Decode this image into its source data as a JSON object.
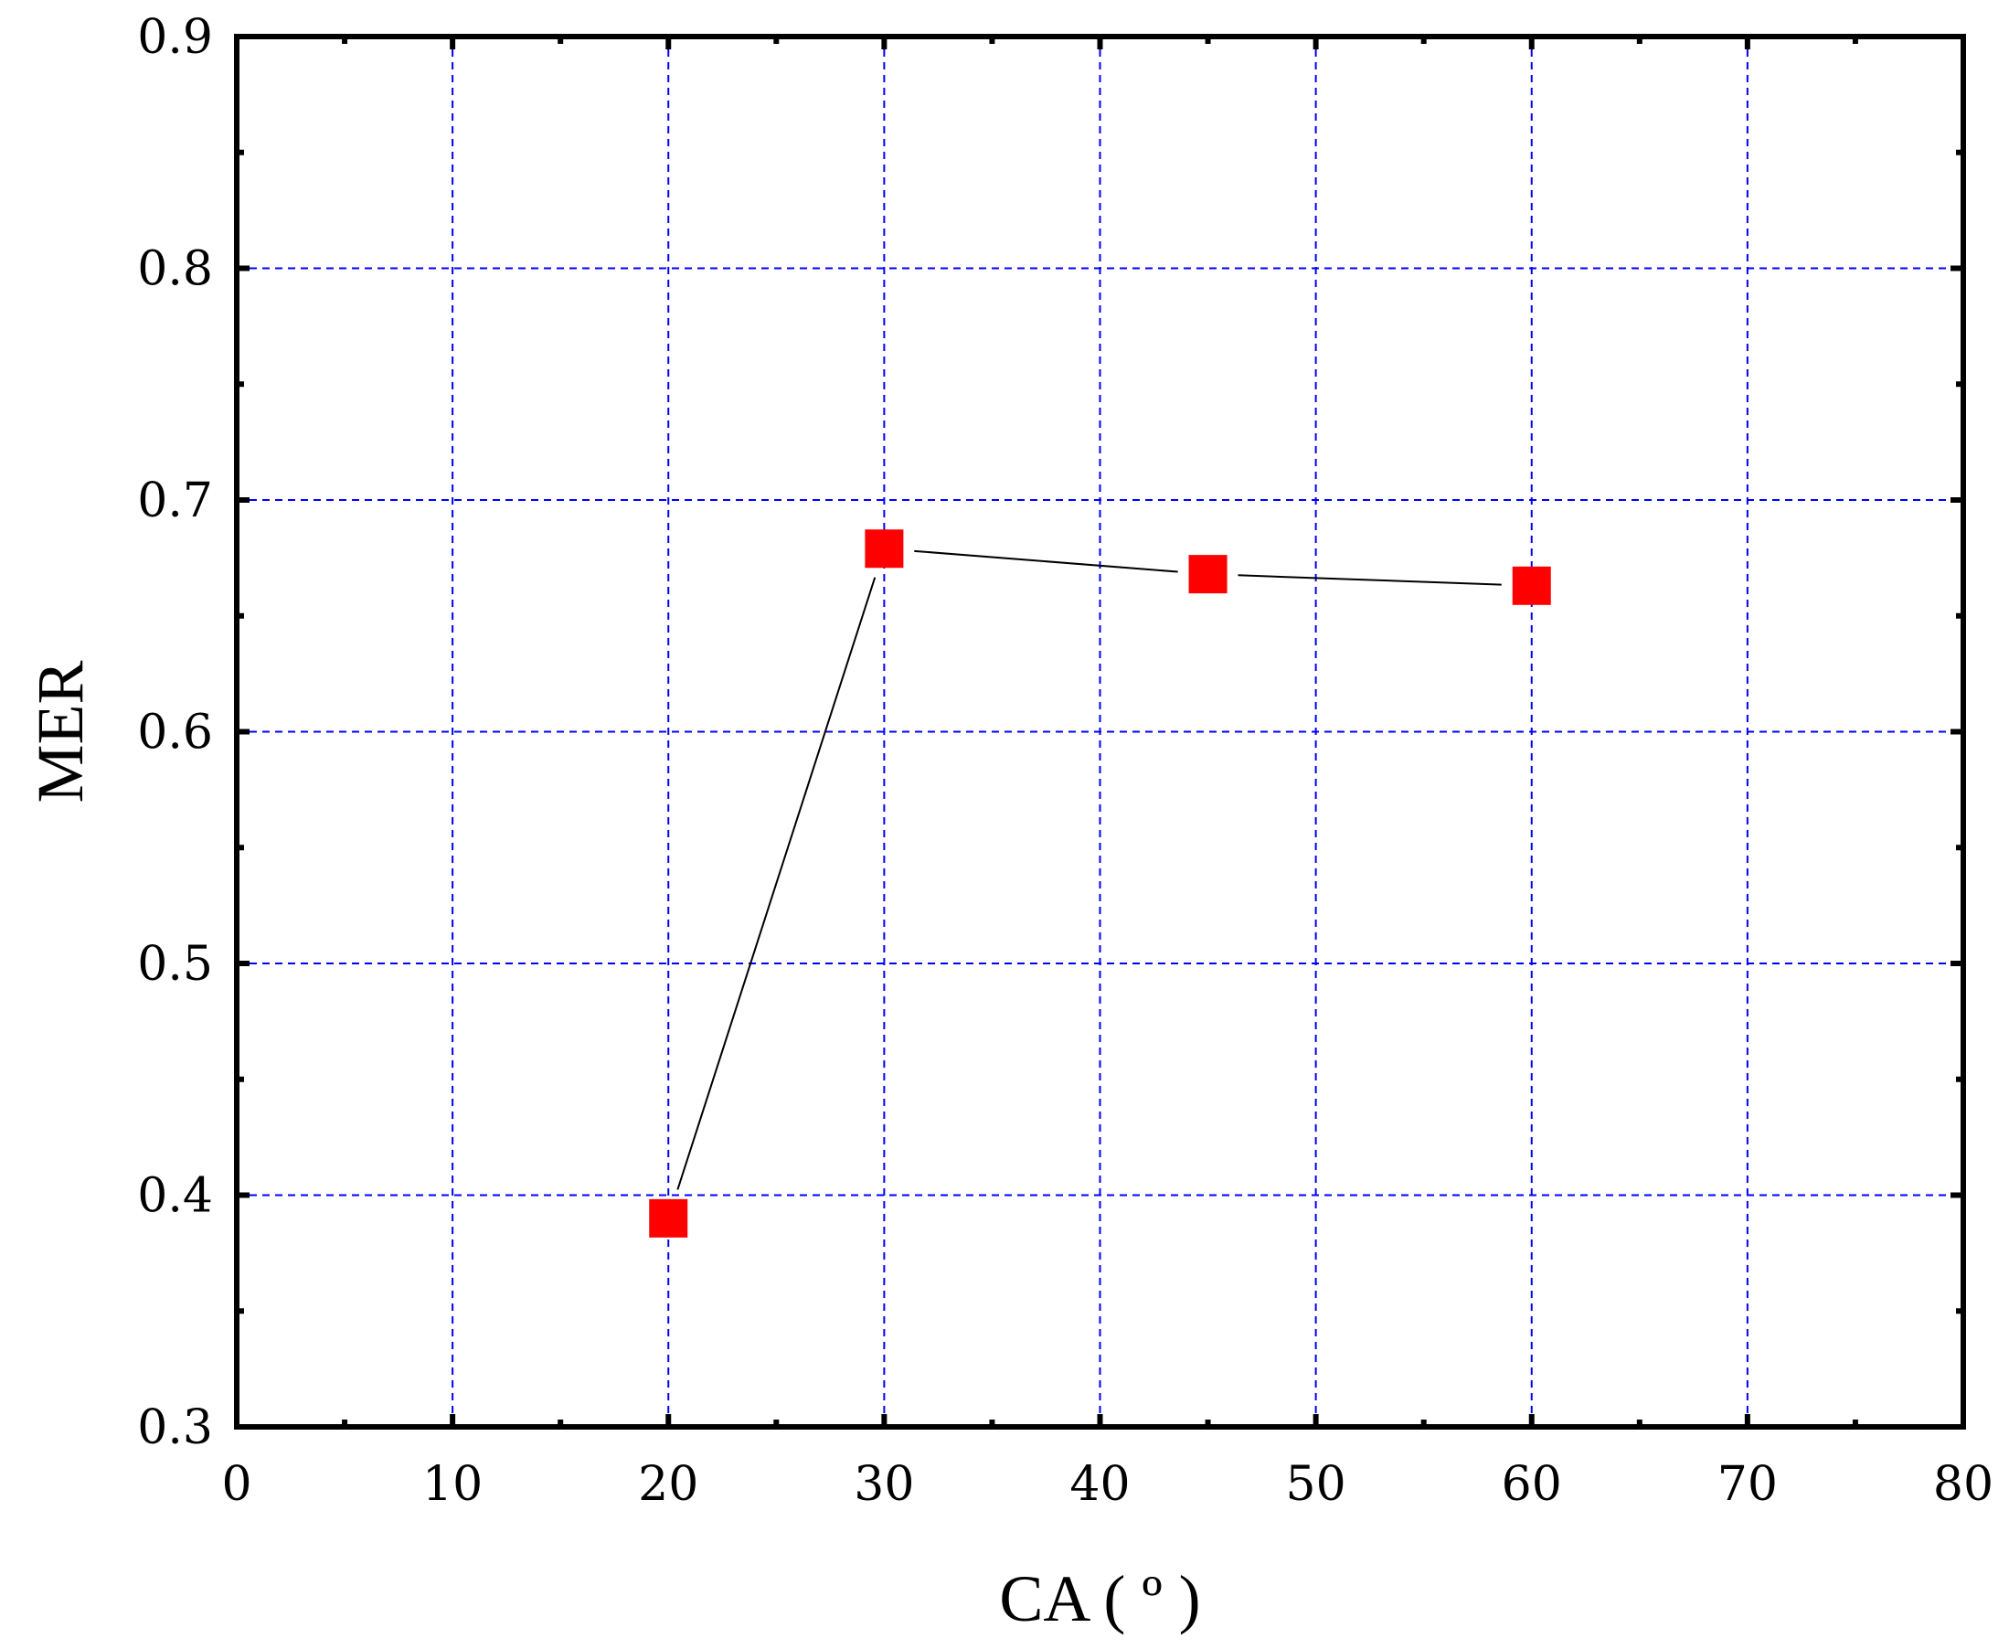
{
  "chart_data": {
    "type": "line",
    "xlabel": "CA ( º )",
    "ylabel": "MER",
    "xlim": [
      0,
      80
    ],
    "ylim": [
      0.3,
      0.9
    ],
    "x_ticks": [
      0,
      10,
      20,
      30,
      40,
      50,
      60,
      70,
      80
    ],
    "y_ticks": [
      0.3,
      0.4,
      0.5,
      0.6,
      0.7,
      0.8,
      0.9
    ],
    "x_tick_labels": [
      "0",
      "10",
      "20",
      "30",
      "40",
      "50",
      "60",
      "70",
      "80"
    ],
    "y_tick_labels": [
      "0.3",
      "0.4",
      "0.5",
      "0.6",
      "0.7",
      "0.8",
      "0.9"
    ],
    "grid": true,
    "grid_color": "#0000ff",
    "series": [
      {
        "x": [
          20,
          30,
          45,
          60
        ],
        "y": [
          0.39,
          0.679,
          0.668,
          0.663
        ],
        "marker": "square",
        "marker_color": "#ff0000",
        "line_color": "#000000"
      }
    ]
  }
}
